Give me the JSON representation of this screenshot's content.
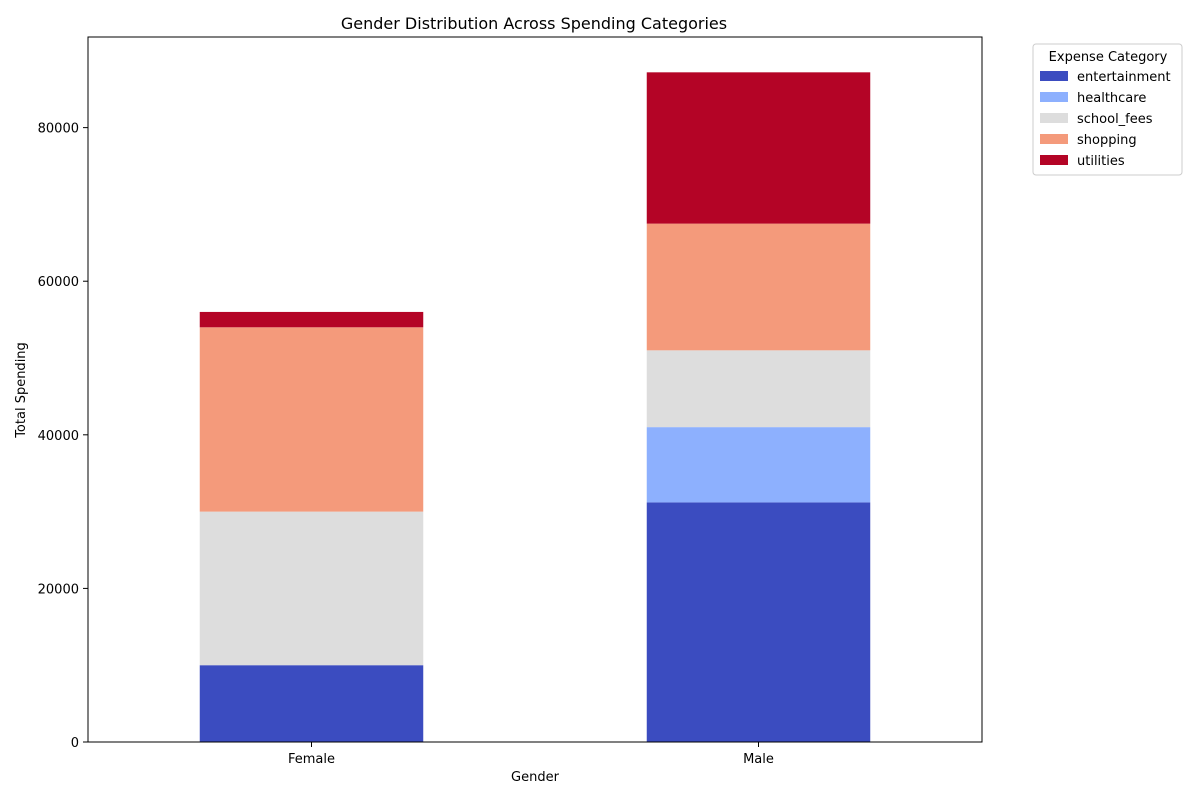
{
  "chart_data": {
    "type": "bar",
    "stacked": true,
    "title": "Gender Distribution Across Spending Categories",
    "xlabel": "Gender",
    "ylabel": "Total Spending",
    "categories": [
      "Female",
      "Male"
    ],
    "series": [
      {
        "name": "entertainment",
        "color": "#3b4cc0",
        "values": [
          10000,
          31200
        ]
      },
      {
        "name": "healthcare",
        "color": "#8db0fe",
        "values": [
          0,
          9800
        ]
      },
      {
        "name": "school_fees",
        "color": "#dddddd",
        "values": [
          20000,
          10000
        ]
      },
      {
        "name": "shopping",
        "color": "#f49a7b",
        "values": [
          24000,
          16500
        ]
      },
      {
        "name": "utilities",
        "color": "#b40426",
        "values": [
          2000,
          19700
        ]
      }
    ],
    "ylim": [
      0,
      91800
    ],
    "yticks": [
      0,
      20000,
      40000,
      60000,
      80000
    ],
    "grid": false,
    "legend": {
      "title": "Expense Category",
      "placement": "outside-top-right"
    }
  }
}
